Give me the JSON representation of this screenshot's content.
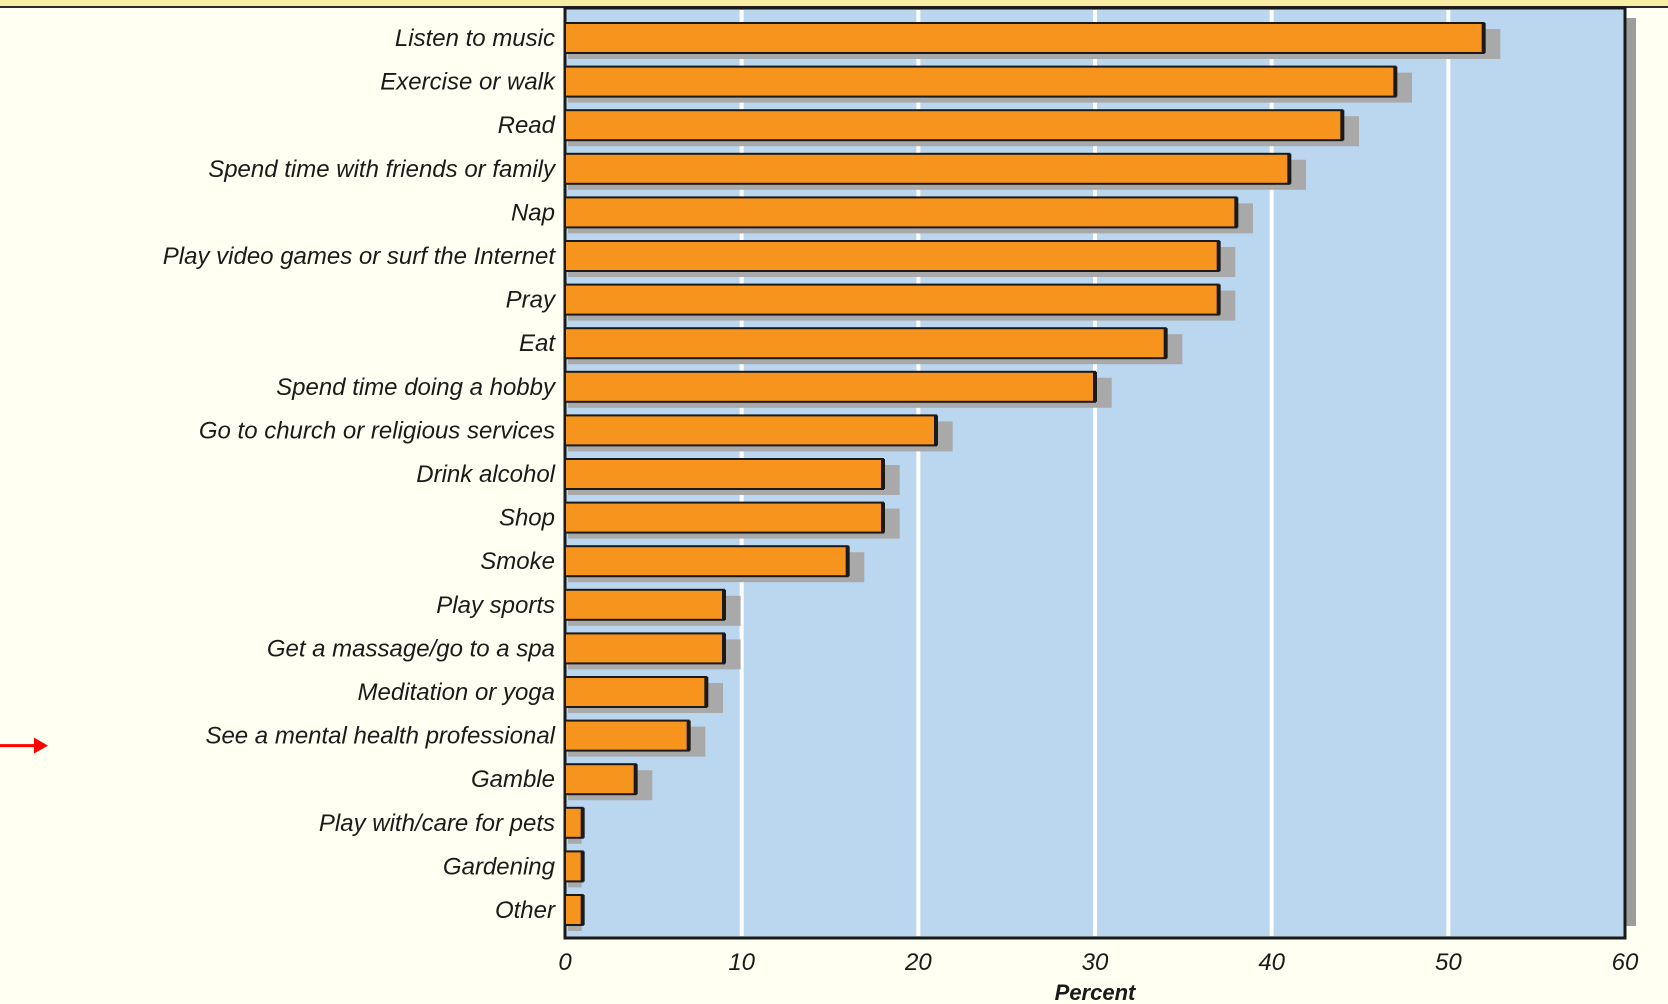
{
  "chart_data": {
    "type": "bar",
    "orientation": "horizontal",
    "categories": [
      "Listen to music",
      "Exercise or walk",
      "Read",
      "Spend time with friends or family",
      "Nap",
      "Play video games or surf the Internet",
      "Pray",
      "Eat",
      "Spend time doing a hobby",
      "Go to church or religious services",
      "Drink alcohol",
      "Shop",
      "Smoke",
      "Play sports",
      "Get a massage/go to a spa",
      "Meditation or yoga",
      "See a mental health professional",
      "Gamble",
      "Play with/care for pets",
      "Gardening",
      "Other"
    ],
    "series": [
      {
        "values": [
          53,
          48,
          45,
          42,
          39,
          38,
          38,
          35,
          31,
          22,
          19,
          19,
          17,
          10,
          10,
          9,
          8,
          5,
          1,
          1,
          1
        ]
      },
      {
        "values": [
          52,
          47,
          44,
          41,
          38,
          37,
          37,
          34,
          30,
          21,
          18,
          18,
          16,
          9,
          9,
          8,
          7,
          4,
          1,
          1,
          1
        ]
      }
    ],
    "xlabel": "Percent",
    "xlim": [
      0,
      60
    ],
    "xticks": [
      "0",
      "10",
      "20",
      "30",
      "40",
      "50",
      "60"
    ],
    "grid": true,
    "legend": "none",
    "highlighted_category": "See a mental health professional",
    "colors": {
      "bar": "#f7941d",
      "bar_shadow": "#a9a9a9",
      "plot_background": "#bbd6ef",
      "gridline": "#ffffff",
      "pointer_arrow": "#ff0000",
      "frame_shadow": "#9d9d9d"
    }
  }
}
